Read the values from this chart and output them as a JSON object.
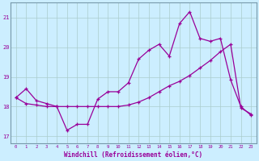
{
  "xlabel": "Windchill (Refroidissement éolien,°C)",
  "background_color": "#cceeff",
  "grid_color": "#aacccc",
  "line_color": "#990099",
  "x_values": [
    0,
    1,
    2,
    3,
    4,
    5,
    6,
    7,
    8,
    9,
    10,
    11,
    12,
    13,
    14,
    15,
    16,
    17,
    18,
    19,
    20,
    21,
    22,
    23
  ],
  "windchill": [
    18.3,
    18.6,
    18.2,
    18.1,
    18.0,
    17.2,
    17.4,
    17.4,
    18.25,
    18.5,
    18.5,
    18.8,
    19.6,
    19.9,
    20.1,
    19.7,
    20.8,
    21.2,
    20.3,
    20.2,
    20.3,
    18.9,
    18.0,
    17.7
  ],
  "temperature": [
    18.3,
    18.1,
    18.05,
    18.0,
    18.0,
    18.0,
    18.0,
    18.0,
    18.0,
    18.0,
    18.0,
    18.05,
    18.15,
    18.3,
    18.5,
    18.7,
    18.85,
    19.05,
    19.3,
    19.55,
    19.85,
    20.1,
    17.95,
    17.75
  ],
  "ylim": [
    16.75,
    21.5
  ],
  "yticks": [
    17,
    18,
    19,
    20,
    21
  ],
  "xticks": [
    0,
    1,
    2,
    3,
    4,
    5,
    6,
    7,
    8,
    9,
    10,
    11,
    12,
    13,
    14,
    15,
    16,
    17,
    18,
    19,
    20,
    21,
    22,
    23
  ]
}
